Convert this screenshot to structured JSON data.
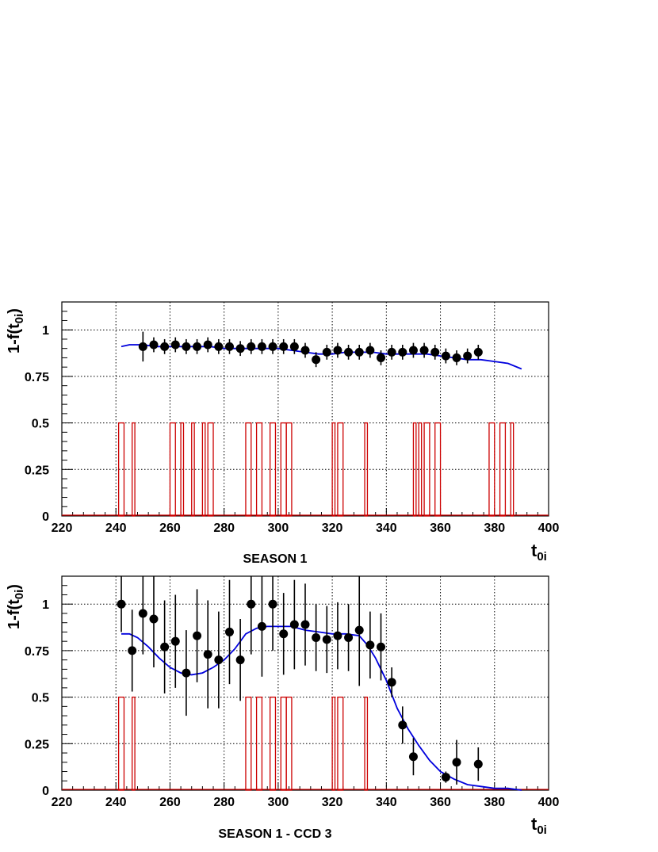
{
  "chart_data": [
    {
      "type": "scatter",
      "title": "SEASON 1",
      "xlabel": "t",
      "xlabel_sub": "0i",
      "ylabel_prefix": "1-f(t",
      "ylabel_sub": "0i",
      "ylabel_suffix": ")",
      "xlim": [
        220,
        400
      ],
      "ylim": [
        0,
        1.15
      ],
      "xticks": [
        220,
        240,
        260,
        280,
        300,
        320,
        340,
        360,
        380,
        400
      ],
      "yticks": [
        0,
        0.25,
        0.5,
        0.75,
        1
      ],
      "ytick_labels": [
        "0",
        "0.25",
        "0.5",
        "0.75",
        "1"
      ],
      "grid": true,
      "series": [
        {
          "kind": "points_with_errors",
          "color": "#000000",
          "x": [
            250,
            254,
            258,
            262,
            266,
            270,
            274,
            278,
            282,
            286,
            290,
            294,
            298,
            302,
            306,
            310,
            314,
            318,
            322,
            326,
            330,
            334,
            338,
            342,
            346,
            350,
            354,
            358,
            362,
            366,
            370,
            374
          ],
          "y": [
            0.91,
            0.92,
            0.91,
            0.92,
            0.91,
            0.91,
            0.92,
            0.91,
            0.91,
            0.9,
            0.91,
            0.91,
            0.91,
            0.91,
            0.91,
            0.89,
            0.84,
            0.88,
            0.89,
            0.88,
            0.88,
            0.89,
            0.85,
            0.88,
            0.88,
            0.89,
            0.89,
            0.88,
            0.86,
            0.85,
            0.86,
            0.88
          ],
          "yerr": [
            0.08,
            0.04,
            0.04,
            0.04,
            0.04,
            0.04,
            0.04,
            0.04,
            0.04,
            0.04,
            0.04,
            0.04,
            0.04,
            0.04,
            0.04,
            0.04,
            0.04,
            0.04,
            0.04,
            0.04,
            0.04,
            0.04,
            0.04,
            0.04,
            0.04,
            0.04,
            0.04,
            0.04,
            0.04,
            0.04,
            0.04,
            0.04
          ]
        },
        {
          "kind": "line",
          "color": "#0000dd",
          "x": [
            242,
            245,
            250,
            255,
            260,
            265,
            270,
            275,
            280,
            285,
            290,
            295,
            300,
            305,
            310,
            315,
            320,
            325,
            330,
            335,
            340,
            345,
            350,
            355,
            360,
            365,
            370,
            375,
            380,
            385,
            390
          ],
          "y": [
            0.91,
            0.92,
            0.92,
            0.91,
            0.91,
            0.91,
            0.91,
            0.91,
            0.9,
            0.9,
            0.9,
            0.9,
            0.9,
            0.89,
            0.88,
            0.87,
            0.87,
            0.88,
            0.88,
            0.88,
            0.87,
            0.87,
            0.87,
            0.87,
            0.86,
            0.85,
            0.84,
            0.84,
            0.83,
            0.82,
            0.79
          ]
        },
        {
          "kind": "bars",
          "color": "#cc0000",
          "height": 0.5,
          "x": [
            [
              241,
              243
            ],
            [
              246,
              247
            ],
            [
              260,
              262
            ],
            [
              264,
              265
            ],
            [
              268,
              269
            ],
            [
              272,
              273
            ],
            [
              274,
              276
            ],
            [
              288,
              290
            ],
            [
              292,
              294
            ],
            [
              297,
              299
            ],
            [
              301,
              303
            ],
            [
              303,
              305
            ],
            [
              320,
              321
            ],
            [
              322,
              324
            ],
            [
              332,
              333
            ],
            [
              350,
              351
            ],
            [
              352,
              353
            ],
            [
              354,
              356
            ],
            [
              358,
              360
            ],
            [
              378,
              380
            ],
            [
              382,
              384
            ],
            [
              386,
              387
            ]
          ]
        }
      ]
    },
    {
      "type": "scatter",
      "title": "SEASON 1 - CCD 3",
      "xlabel": "t",
      "xlabel_sub": "0i",
      "ylabel_prefix": "1-f(t",
      "ylabel_sub": "0i",
      "ylabel_suffix": ")",
      "xlim": [
        220,
        400
      ],
      "ylim": [
        0,
        1.15
      ],
      "xticks": [
        220,
        240,
        260,
        280,
        300,
        320,
        340,
        360,
        380,
        400
      ],
      "yticks": [
        0,
        0.25,
        0.5,
        0.75,
        1
      ],
      "ytick_labels": [
        "0",
        "0.25",
        "0.5",
        "0.75",
        "1"
      ],
      "grid": true,
      "series": [
        {
          "kind": "points_with_errors",
          "color": "#000000",
          "x": [
            242,
            246,
            250,
            254,
            258,
            262,
            266,
            270,
            274,
            278,
            282,
            286,
            290,
            294,
            298,
            302,
            306,
            310,
            314,
            318,
            322,
            326,
            330,
            334,
            338,
            342,
            346,
            350,
            362,
            366,
            374
          ],
          "y": [
            1.0,
            0.75,
            0.95,
            0.92,
            0.77,
            0.8,
            0.63,
            0.83,
            0.73,
            0.7,
            0.85,
            0.7,
            1.0,
            0.88,
            1.0,
            0.84,
            0.89,
            0.89,
            0.82,
            0.81,
            0.83,
            0.82,
            0.86,
            0.78,
            0.77,
            0.58,
            0.35,
            0.18,
            0.07,
            0.15,
            0.14
          ],
          "yerr": [
            0.15,
            0.22,
            0.22,
            0.26,
            0.25,
            0.25,
            0.23,
            0.25,
            0.29,
            0.26,
            0.28,
            0.22,
            0.27,
            0.27,
            0.25,
            0.22,
            0.24,
            0.22,
            0.18,
            0.18,
            0.18,
            0.18,
            0.3,
            0.18,
            0.18,
            0.08,
            0.1,
            0.1,
            0.03,
            0.12,
            0.09
          ]
        },
        {
          "kind": "line",
          "color": "#0000dd",
          "x": [
            242,
            245,
            248,
            252,
            256,
            260,
            264,
            268,
            272,
            276,
            280,
            284,
            288,
            292,
            296,
            300,
            305,
            310,
            315,
            320,
            325,
            330,
            333,
            336,
            340,
            344,
            348,
            352,
            356,
            360,
            365,
            370,
            375,
            380,
            385,
            390
          ],
          "y": [
            0.84,
            0.84,
            0.82,
            0.77,
            0.71,
            0.66,
            0.63,
            0.62,
            0.63,
            0.66,
            0.7,
            0.76,
            0.84,
            0.87,
            0.88,
            0.88,
            0.88,
            0.86,
            0.85,
            0.84,
            0.84,
            0.83,
            0.78,
            0.71,
            0.59,
            0.44,
            0.33,
            0.24,
            0.16,
            0.1,
            0.06,
            0.03,
            0.02,
            0.01,
            0.01,
            0.0
          ]
        },
        {
          "kind": "bars",
          "color": "#cc0000",
          "height": 0.5,
          "x": [
            [
              241,
              243
            ],
            [
              246,
              247
            ],
            [
              288,
              290
            ],
            [
              292,
              294
            ],
            [
              297,
              299
            ],
            [
              301,
              303
            ],
            [
              303,
              305
            ],
            [
              320,
              321
            ],
            [
              322,
              324
            ],
            [
              332,
              333
            ]
          ]
        }
      ]
    }
  ]
}
